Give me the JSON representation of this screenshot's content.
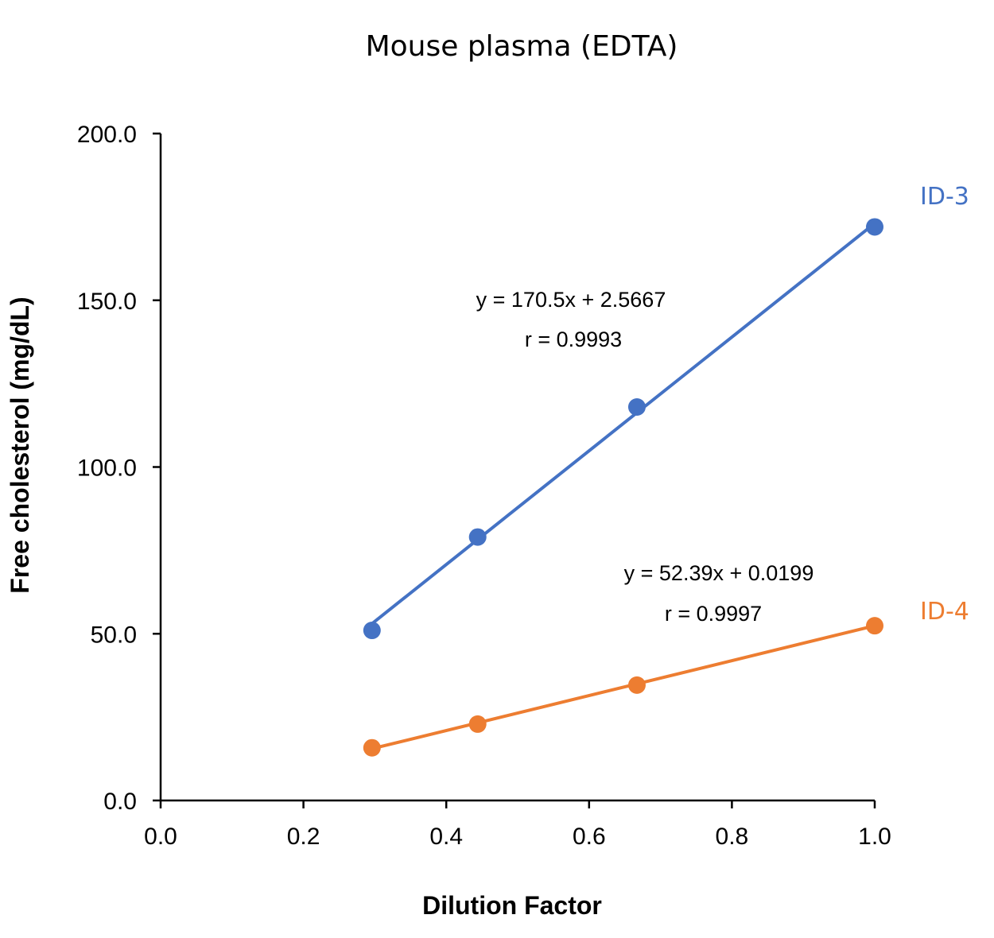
{
  "chart_data": {
    "type": "scatter",
    "title": "Mouse plasma (EDTA)",
    "xlabel": "Dilution Factor",
    "ylabel": "Free cholesterol (mg/dL)",
    "xlim": [
      0,
      1
    ],
    "ylim": [
      0,
      200
    ],
    "x_ticks": [
      "0.0",
      "0.2",
      "0.4",
      "0.6",
      "0.8",
      "1.0"
    ],
    "y_ticks": [
      "0.0",
      "50.0",
      "100.0",
      "150.0",
      "200.0"
    ],
    "grid": false,
    "legend": "none",
    "series": [
      {
        "name": "ID-3",
        "color": "#4472C4",
        "x": [
          0.296,
          0.444,
          0.667,
          1.0
        ],
        "y": [
          51.0,
          79.0,
          118.0,
          172.0
        ],
        "equation": "y = 170.5x + 2.5667",
        "r": "r = 0.9993",
        "trendline": {
          "slope": 170.5,
          "intercept": 2.5667
        }
      },
      {
        "name": "ID-4",
        "color": "#ED7D31",
        "x": [
          0.296,
          0.444,
          0.667,
          1.0
        ],
        "y": [
          15.8,
          22.9,
          34.6,
          52.4
        ],
        "equation": "y = 52.39x + 0.0199",
        "r": "r = 0.9997",
        "trendline": {
          "slope": 52.39,
          "intercept": 0.0199
        }
      }
    ]
  }
}
